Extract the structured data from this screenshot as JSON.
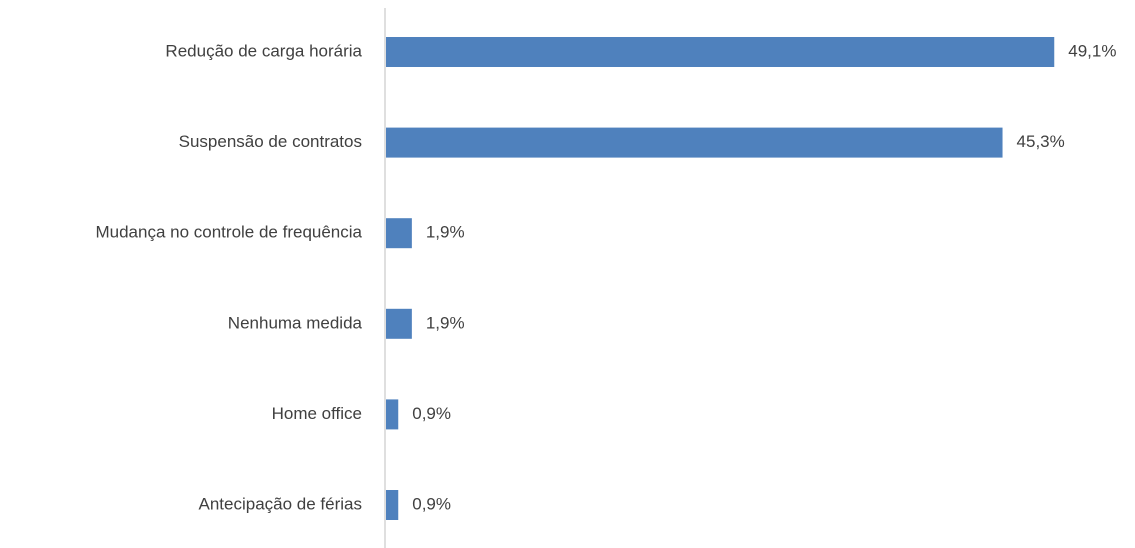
{
  "chart_data": {
    "type": "bar",
    "orientation": "horizontal",
    "categories": [
      "Redução de carga horária",
      "Suspensão de contratos",
      "Mudança no controle de frequência",
      "Nenhuma medida",
      "Home office",
      "Antecipação de férias"
    ],
    "values": [
      49.1,
      45.3,
      1.9,
      1.9,
      0.9,
      0.9
    ],
    "value_labels": [
      "49,1%",
      "45,3%",
      "1,9%",
      "1,9%",
      "0,9%",
      "0,9%"
    ],
    "color": "#4f81bd"
  }
}
